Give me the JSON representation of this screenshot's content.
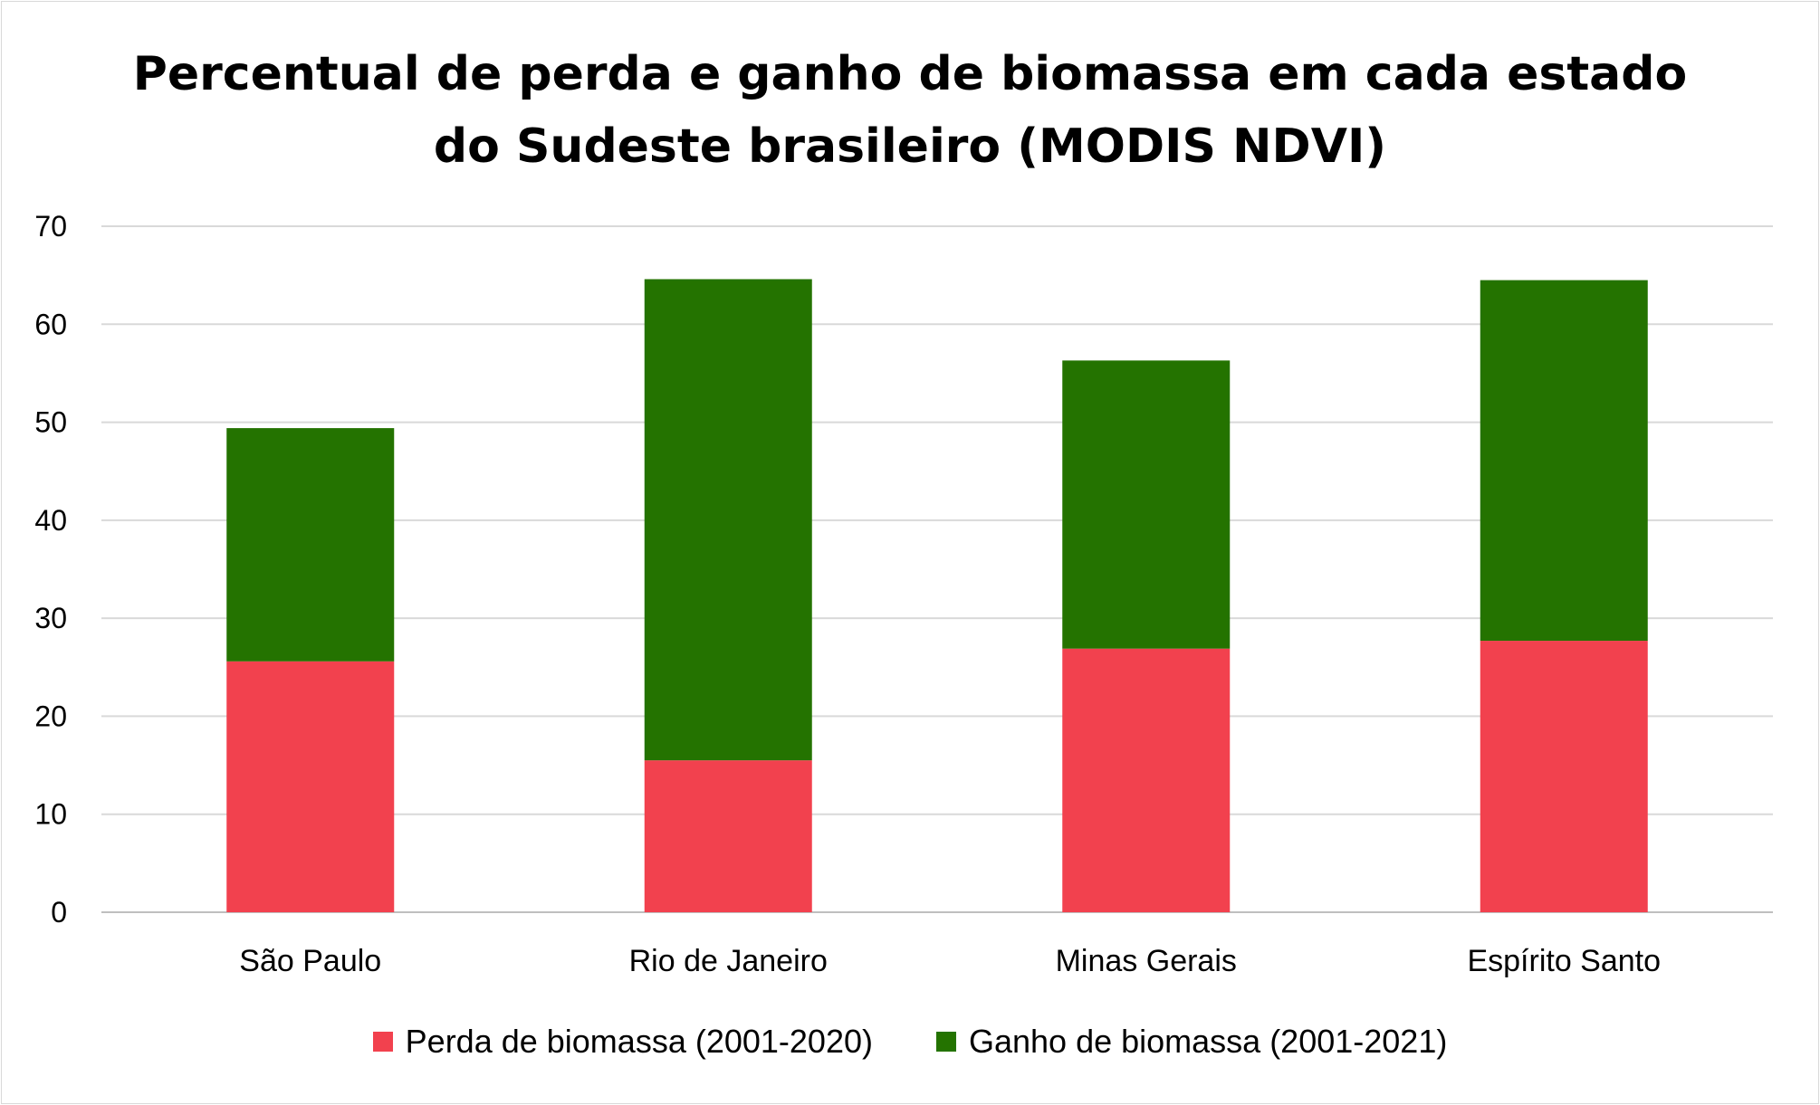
{
  "chart_data": {
    "type": "bar",
    "stacked": true,
    "title_lines": [
      "Percentual de perda e ganho de biomassa em cada estado",
      "do Sudeste brasileiro (MODIS NDVI)"
    ],
    "categories": [
      "São Paulo",
      "Rio de Janeiro",
      "Minas Gerais",
      "Espírito Santo"
    ],
    "series": [
      {
        "name": "Perda de biomassa (2001-2020)",
        "color": "#f2414e",
        "values": [
          25.6,
          15.5,
          26.9,
          27.7
        ]
      },
      {
        "name": "Ganho de biomassa (2001-2021)",
        "color": "#247300",
        "values": [
          23.8,
          49.1,
          29.4,
          36.8
        ]
      }
    ],
    "ylim": [
      0,
      70
    ],
    "yticks": [
      "0",
      "10",
      "20",
      "30",
      "40",
      "50",
      "60",
      "70"
    ],
    "grid": true,
    "legend_position": "bottom"
  }
}
